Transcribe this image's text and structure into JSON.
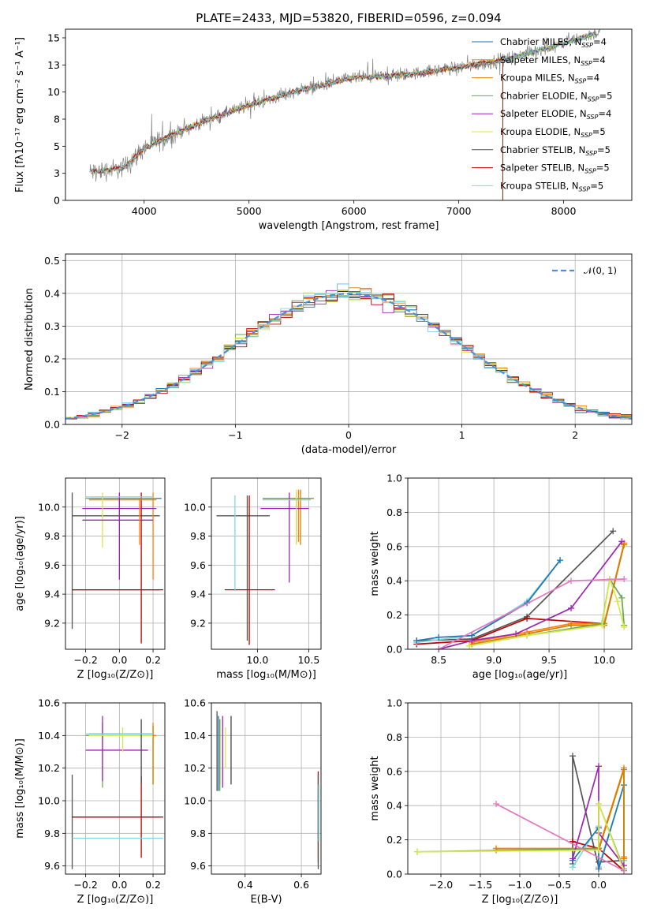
{
  "figure": {
    "title": "PLATE=2433, MJD=53820, FIBERID=0596, z=0.094"
  },
  "models": [
    {
      "label": "Chabrier MILES, N",
      "sub": "SSP",
      "n": "=4",
      "color": "#1f77b4"
    },
    {
      "label": "Salpeter MILES, N",
      "sub": "SSP",
      "n": "=4",
      "color": "#ff7f0e"
    },
    {
      "label": "Kroupa MILES, N",
      "sub": "SSP",
      "n": "=4",
      "color": "#d08000"
    },
    {
      "label": "Chabrier ELODIE, N",
      "sub": "SSP",
      "n": "=5",
      "color": "#6aa84f"
    },
    {
      "label": "Salpeter ELODIE, N",
      "sub": "SSP",
      "n": "=4",
      "color": "#9c27b0"
    },
    {
      "label": "Kroupa ELODIE, N",
      "sub": "SSP",
      "n": "=5",
      "color": "#d7e84a"
    },
    {
      "label": "Chabrier STELIB, N",
      "sub": "SSP",
      "n": "=5",
      "color": "#555555"
    },
    {
      "label": "Salpeter STELIB, N",
      "sub": "SSP",
      "n": "=5",
      "color": "#c00000"
    },
    {
      "label": "Kroupa STELIB, N",
      "sub": "SSP",
      "n": "=5",
      "color": "#7fd6e0"
    }
  ],
  "chart_data": [
    {
      "id": "spectrum",
      "type": "line",
      "xlabel": "wavelength [Angstrom, rest frame]",
      "ylabel": "Flux [fλ10⁻¹⁷ erg cm⁻² s⁻¹ A⁻¹]",
      "xlim": [
        3250,
        8650
      ],
      "ylim": [
        0,
        15.8
      ],
      "xticks": [
        4000,
        5000,
        6000,
        7000,
        8000
      ],
      "yticks": [
        0.0,
        2.5,
        5.0,
        7.5,
        10.0,
        12.5,
        15.0
      ],
      "continuum_x": [
        3500,
        3800,
        4000,
        4300,
        4600,
        5000,
        5500,
        6000,
        6500,
        7000,
        7400,
        8000,
        8300
      ],
      "continuum_y": [
        2.6,
        3.0,
        4.8,
        6.2,
        7.4,
        8.8,
        10.2,
        11.3,
        11.6,
        12.3,
        12.9,
        14.5,
        15.4
      ],
      "grid": false,
      "legend": "upper right"
    },
    {
      "id": "residuals",
      "type": "histogram",
      "xlabel": "(data-model)/error",
      "ylabel": "Normed distribution",
      "xlim": [
        -2.5,
        2.5
      ],
      "ylim": [
        0,
        0.52
      ],
      "xticks": [
        -2,
        -1,
        0,
        1,
        2
      ],
      "yticks": [
        0.0,
        0.1,
        0.2,
        0.3,
        0.4,
        0.5
      ],
      "reference_curve": "𝒩(0, 1)",
      "grid": true,
      "legend": "upper right"
    },
    {
      "id": "age_vs_Z",
      "type": "errorbar",
      "xlabel": "Z [log₁₀(Z/Z⊙)]",
      "ylabel": "age  [log₁₀(age/yr)]",
      "xlim": [
        -0.32,
        0.27
      ],
      "ylim": [
        9.02,
        10.2
      ],
      "xticks": [
        -0.2,
        0.0,
        0.2
      ],
      "yticks": [
        9.2,
        9.4,
        9.6,
        9.8,
        10.0
      ],
      "points": [
        {
          "m": 6,
          "x": -0.02,
          "y": 9.94,
          "xe": [
            -0.28,
            0.24
          ],
          "ye": null
        },
        {
          "m": 6,
          "x": -0.28,
          "y": 9.62,
          "xe": null,
          "ye": [
            9.16,
            10.1
          ]
        },
        {
          "m": 6,
          "x": -0.02,
          "y": 9.43,
          "xe": [
            -0.28,
            0.24
          ],
          "ye": null
        },
        {
          "m": 7,
          "x": 0.13,
          "y": 9.43,
          "xe": [
            -0.28,
            0.26
          ],
          "ye": [
            9.06,
            10.1
          ]
        },
        {
          "m": 0,
          "x": 0.05,
          "y": 10.06,
          "xe": [
            -0.18,
            0.25
          ],
          "ye": null
        },
        {
          "m": 1,
          "x": 0.2,
          "y": 10.05,
          "xe": [
            -0.18,
            0.22
          ],
          "ye": [
            9.5,
            10.1
          ]
        },
        {
          "m": 2,
          "x": 0.02,
          "y": 10.06,
          "xe": [
            -0.18,
            0.22
          ],
          "ye": null
        },
        {
          "m": 3,
          "x": 0.0,
          "y": 10.06,
          "xe": [
            -0.2,
            0.22
          ],
          "ye": null
        },
        {
          "m": 4,
          "x": 0.0,
          "y": 9.99,
          "xe": [
            -0.22,
            0.22
          ],
          "ye": [
            9.5,
            10.1
          ]
        },
        {
          "m": 5,
          "x": -0.1,
          "y": 10.06,
          "xe": null,
          "ye": [
            9.72,
            10.1
          ]
        },
        {
          "m": 8,
          "x": 0.0,
          "y": 10.07,
          "xe": [
            -0.2,
            0.2
          ],
          "ye": null
        },
        {
          "m": 4,
          "x": 0.05,
          "y": 9.91,
          "xe": [
            -0.22,
            0.2
          ],
          "ye": null
        },
        {
          "m": 1,
          "x": 0.12,
          "y": 9.91,
          "xe": null,
          "ye": [
            9.74,
            10.06
          ]
        }
      ]
    },
    {
      "id": "age_vs_mass",
      "type": "errorbar",
      "xlabel": "mass [log₁₀(M/M⊙)]",
      "ylabel": "",
      "xlim": [
        9.55,
        10.62
      ],
      "ylim": [
        9.02,
        10.2
      ],
      "xticks": [
        10.0,
        10.5
      ],
      "yticks": [
        9.2,
        9.4,
        9.6,
        9.8,
        10.0
      ],
      "points": [
        {
          "m": 6,
          "x": 9.85,
          "y": 9.94,
          "xe": [
            9.6,
            10.12
          ],
          "ye": null
        },
        {
          "m": 6,
          "x": 9.9,
          "y": 9.62,
          "xe": null,
          "ye": [
            9.08,
            10.08
          ]
        },
        {
          "m": 7,
          "x": 9.92,
          "y": 9.43,
          "xe": [
            9.68,
            10.17
          ],
          "ye": [
            9.05,
            10.08
          ]
        },
        {
          "m": 8,
          "x": 9.78,
          "y": 9.43,
          "xe": null,
          "ye": [
            9.42,
            10.08
          ]
        },
        {
          "m": 0,
          "x": 10.38,
          "y": 10.06,
          "xe": [
            10.05,
            10.55
          ],
          "ye": null
        },
        {
          "m": 1,
          "x": 10.4,
          "y": 10.06,
          "xe": [
            10.05,
            10.55
          ],
          "ye": [
            9.76,
            10.12
          ]
        },
        {
          "m": 2,
          "x": 10.42,
          "y": 10.06,
          "xe": null,
          "ye": [
            9.74,
            10.12
          ]
        },
        {
          "m": 3,
          "x": 10.38,
          "y": 10.06,
          "xe": [
            10.06,
            10.53
          ],
          "ye": [
            9.75,
            10.1
          ]
        },
        {
          "m": 4,
          "x": 10.31,
          "y": 9.99,
          "xe": [
            10.03,
            10.5
          ],
          "ye": [
            9.48,
            10.1
          ]
        },
        {
          "m": 5,
          "x": 10.38,
          "y": 10.06,
          "xe": null,
          "ye": [
            9.74,
            10.12
          ]
        },
        {
          "m": 8,
          "x": 10.4,
          "y": 10.05,
          "xe": [
            10.05,
            10.52
          ],
          "ye": null
        }
      ]
    },
    {
      "id": "weight_vs_age",
      "type": "line",
      "xlabel": "age  [log₁₀(age/yr)]",
      "ylabel": "mass weight",
      "xlim": [
        8.22,
        10.25
      ],
      "ylim": [
        0,
        1.0
      ],
      "xticks": [
        8.5,
        9.0,
        9.5,
        10.0
      ],
      "yticks": [
        0.0,
        0.2,
        0.4,
        0.6,
        0.8,
        1.0
      ],
      "grid": true,
      "series": [
        {
          "m": 6,
          "x": [
            8.3,
            8.8,
            9.3,
            10.08
          ],
          "y": [
            0.05,
            0.06,
            0.19,
            0.69
          ]
        },
        {
          "m": 7,
          "x": [
            8.3,
            8.8,
            9.3,
            10.0
          ],
          "y": [
            0.03,
            0.05,
            0.18,
            0.15
          ]
        },
        {
          "m": 8,
          "x": [
            8.3,
            8.8,
            9.3,
            9.6
          ],
          "y": [
            0.04,
            0.08,
            0.28,
            0.52
          ]
        },
        {
          "m": 0,
          "x": [
            8.3,
            8.5,
            8.8,
            9.3,
            9.6
          ],
          "y": [
            0.05,
            0.07,
            0.08,
            0.27,
            0.52
          ]
        },
        {
          "m": 1,
          "x": [
            8.8,
            9.3,
            9.7,
            10.0,
            10.18
          ],
          "y": [
            0.04,
            0.1,
            0.15,
            0.15,
            0.62
          ]
        },
        {
          "m": 2,
          "x": [
            8.8,
            9.3,
            9.7,
            10.0,
            10.18
          ],
          "y": [
            0.03,
            0.09,
            0.14,
            0.14,
            0.61
          ]
        },
        {
          "m": 3,
          "x": [
            8.78,
            9.3,
            9.98,
            10.05,
            10.16,
            10.18
          ],
          "y": [
            0.02,
            0.08,
            0.15,
            0.41,
            0.3,
            0.14
          ]
        },
        {
          "m": 4,
          "x": [
            8.5,
            8.8,
            9.2,
            9.7,
            10.16
          ],
          "y": [
            0.0,
            0.05,
            0.09,
            0.24,
            0.63
          ]
        },
        {
          "m": 5,
          "x": [
            8.78,
            9.3,
            9.98,
            10.05,
            10.12,
            10.18
          ],
          "y": [
            0.02,
            0.08,
            0.14,
            0.41,
            0.28,
            0.13
          ]
        },
        {
          "m": 9,
          "x": [
            8.5,
            9.7,
            10.18
          ],
          "y": [
            0.0,
            0.4,
            0.41
          ]
        }
      ]
    },
    {
      "id": "mass_vs_Z",
      "type": "errorbar",
      "xlabel": "Z [log₁₀(Z/Z⊙)]",
      "ylabel": "mass [log₁₀(M/M⊙)]",
      "xlim": [
        -0.32,
        0.27
      ],
      "ylim": [
        9.55,
        10.6
      ],
      "xticks": [
        -0.2,
        0.0,
        0.2
      ],
      "yticks": [
        9.6,
        9.8,
        10.0,
        10.2,
        10.4,
        10.6
      ],
      "points": [
        {
          "m": 6,
          "x": -0.02,
          "y": 9.9,
          "xe": [
            -0.28,
            0.24
          ],
          "ye": null
        },
        {
          "m": 6,
          "x": -0.28,
          "y": 9.88,
          "xe": null,
          "ye": [
            9.58,
            10.16
          ]
        },
        {
          "m": 7,
          "x": 0.13,
          "y": 9.9,
          "xe": [
            -0.28,
            0.26
          ],
          "ye": [
            9.65,
            10.15
          ]
        },
        {
          "m": 8,
          "x": -0.02,
          "y": 9.77,
          "xe": [
            -0.28,
            0.26
          ],
          "ye": null
        },
        {
          "m": 0,
          "x": 0.0,
          "y": 10.41,
          "xe": [
            -0.18,
            0.2
          ],
          "ye": null
        },
        {
          "m": 1,
          "x": 0.2,
          "y": 10.4,
          "xe": [
            -0.18,
            0.22
          ],
          "ye": [
            10.1,
            10.48
          ]
        },
        {
          "m": 3,
          "x": -0.1,
          "y": 10.4,
          "xe": [
            -0.2,
            0.18
          ],
          "ye": [
            10.08,
            10.48
          ]
        },
        {
          "m": 4,
          "x": -0.1,
          "y": 10.31,
          "xe": [
            -0.2,
            0.17
          ],
          "ye": [
            10.12,
            10.52
          ]
        },
        {
          "m": 5,
          "x": 0.02,
          "y": 10.4,
          "xe": [
            -0.18,
            0.2
          ],
          "ye": [
            10.3,
            10.45
          ]
        },
        {
          "m": 2,
          "x": 0.2,
          "y": 10.4,
          "xe": null,
          "ye": [
            10.1,
            10.46
          ]
        },
        {
          "m": 9,
          "x": 0.13,
          "y": 10.4,
          "xe": null,
          "ye": [
            10.1,
            10.5
          ]
        },
        {
          "m": 8,
          "x": 0.0,
          "y": 10.41,
          "xe": [
            -0.2,
            0.2
          ],
          "ye": null
        }
      ]
    },
    {
      "id": "mass_vs_EBV",
      "type": "errorbar",
      "xlabel": "E(B-V)",
      "ylabel": "",
      "xlim": [
        0.28,
        0.67
      ],
      "ylim": [
        9.55,
        10.6
      ],
      "xticks": [
        0.4,
        0.6
      ],
      "yticks": [
        9.6,
        9.8,
        10.0,
        10.2,
        10.4,
        10.6
      ],
      "points": [
        {
          "m": 6,
          "x": 0.3,
          "y": 10.3,
          "xe": null,
          "ye": [
            10.06,
            10.55
          ]
        },
        {
          "m": 0,
          "x": 0.305,
          "y": 10.3,
          "xe": null,
          "ye": [
            10.06,
            10.52
          ]
        },
        {
          "m": 1,
          "x": 0.31,
          "y": 10.3,
          "xe": null,
          "ye": [
            10.1,
            10.5
          ]
        },
        {
          "m": 3,
          "x": 0.31,
          "y": 10.3,
          "xe": null,
          "ye": [
            10.06,
            10.5
          ]
        },
        {
          "m": 4,
          "x": 0.32,
          "y": 10.3,
          "xe": null,
          "ye": [
            10.08,
            10.52
          ]
        },
        {
          "m": 5,
          "x": 0.33,
          "y": 10.3,
          "xe": null,
          "ye": [
            10.2,
            10.45
          ]
        },
        {
          "m": 9,
          "x": 0.35,
          "y": 10.3,
          "xe": null,
          "ye": [
            10.1,
            10.52
          ]
        },
        {
          "m": 7,
          "x": 0.66,
          "y": 9.9,
          "xe": null,
          "ye": [
            9.62,
            10.18
          ]
        },
        {
          "m": 6,
          "x": 0.66,
          "y": 9.88,
          "xe": null,
          "ye": [
            9.58,
            10.16
          ]
        },
        {
          "m": 8,
          "x": 0.662,
          "y": 9.9,
          "xe": null,
          "ye": [
            9.75,
            10.1
          ]
        }
      ]
    },
    {
      "id": "weight_vs_Z",
      "type": "line",
      "xlabel": "Z [log₁₀(Z/Z⊙)]",
      "ylabel": "mass weight",
      "xlim": [
        -2.42,
        0.42
      ],
      "ylim": [
        0,
        1.0
      ],
      "xticks": [
        -2.0,
        -1.5,
        -1.0,
        -0.5,
        0.0
      ],
      "yticks": [
        0.0,
        0.2,
        0.4,
        0.6,
        0.8,
        1.0
      ],
      "grid": true,
      "series": [
        {
          "m": 6,
          "x": [
            -0.33,
            -0.33,
            0.0,
            0.0,
            0.32
          ],
          "y": [
            0.06,
            0.69,
            0.04,
            0.07,
            0.08
          ]
        },
        {
          "m": 7,
          "x": [
            -0.33,
            0.0,
            0.32
          ],
          "y": [
            0.19,
            0.15,
            0.02
          ]
        },
        {
          "m": 8,
          "x": [
            -0.33,
            0.0,
            0.0,
            0.32,
            0.32
          ],
          "y": [
            0.04,
            0.28,
            0.04,
            0.52,
            0.08
          ]
        },
        {
          "m": 0,
          "x": [
            -0.33,
            0.0,
            0.0,
            0.32
          ],
          "y": [
            0.08,
            0.27,
            0.03,
            0.52
          ]
        },
        {
          "m": 1,
          "x": [
            -1.3,
            0.0,
            0.32,
            0.32
          ],
          "y": [
            0.15,
            0.15,
            0.62,
            0.1
          ]
        },
        {
          "m": 2,
          "x": [
            -1.3,
            0.0,
            0.32,
            0.32
          ],
          "y": [
            0.14,
            0.14,
            0.61,
            0.09
          ]
        },
        {
          "m": 3,
          "x": [
            -2.3,
            0.0,
            0.0,
            0.32
          ],
          "y": [
            0.13,
            0.15,
            0.41,
            0.03
          ]
        },
        {
          "m": 4,
          "x": [
            -0.33,
            0.0,
            0.0,
            0.32
          ],
          "y": [
            0.09,
            0.63,
            0.24,
            0.05
          ]
        },
        {
          "m": 5,
          "x": [
            -2.3,
            0.0,
            0.0,
            0.32
          ],
          "y": [
            0.13,
            0.14,
            0.41,
            0.02
          ]
        },
        {
          "m": 9,
          "x": [
            -1.3,
            0.32
          ],
          "y": [
            0.41,
            0.02
          ]
        }
      ]
    }
  ]
}
